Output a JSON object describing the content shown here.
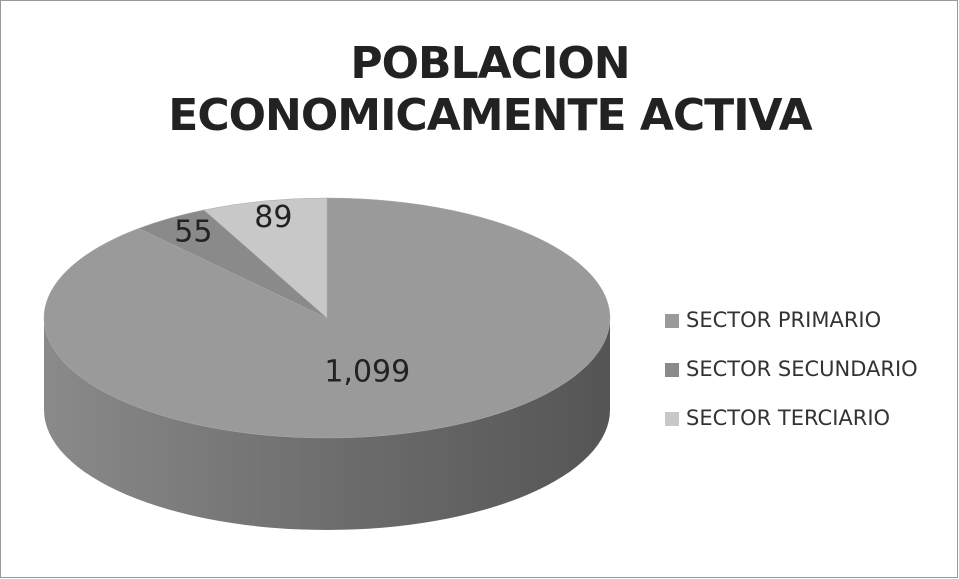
{
  "chart_data": {
    "type": "pie",
    "title": "POBLACION ECONOMICAMENTE ACTIVA",
    "categories": [
      "SECTOR PRIMARIO",
      "SECTOR SECUNDARIO",
      "SECTOR TERCIARIO"
    ],
    "values": [
      1099,
      55,
      89
    ],
    "value_labels": [
      "1,099",
      "55",
      "89"
    ],
    "colors": [
      "#9a9a9a",
      "#8a8a8a",
      "#c8c8c8"
    ],
    "legend": "right"
  }
}
